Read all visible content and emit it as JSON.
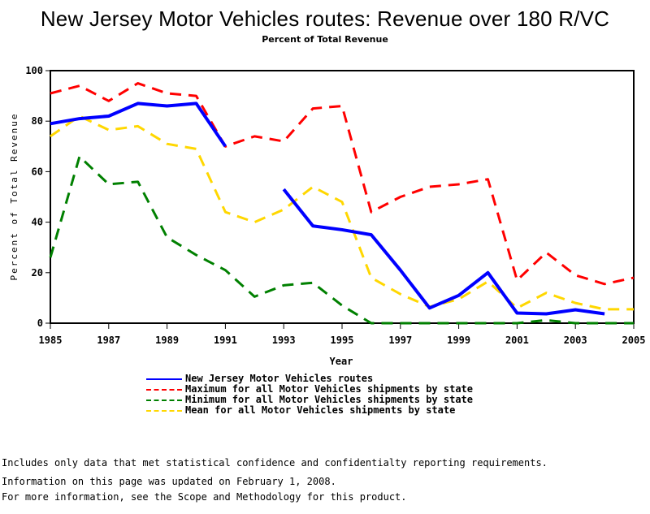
{
  "chart_data": {
    "type": "line",
    "title": "New Jersey Motor Vehicles routes: Revenue over 180 R/VC",
    "subtitle": "Percent of Total Revenue",
    "xlabel": "Year",
    "ylabel": "Percent of Total Revenue",
    "xlim": [
      1985,
      2005
    ],
    "ylim": [
      0,
      100
    ],
    "x_ticks": [
      "1985",
      "1987",
      "1989",
      "1991",
      "1993",
      "1995",
      "1997",
      "1999",
      "2001",
      "2003",
      "2005"
    ],
    "y_ticks": [
      "0",
      "20",
      "40",
      "60",
      "80",
      "100"
    ],
    "grid": false,
    "legend_position": "bottom",
    "x": [
      1985,
      1986,
      1987,
      1988,
      1989,
      1990,
      1991,
      1992,
      1993,
      1994,
      1995,
      1996,
      1997,
      1998,
      1999,
      2000,
      2001,
      2002,
      2003,
      2004,
      2005
    ],
    "series": [
      {
        "name": "New Jersey Motor Vehicles routes",
        "color": "#0000ff",
        "style": "solid",
        "values": [
          79,
          81,
          82,
          87,
          86,
          87,
          70,
          null,
          53,
          38.5,
          37,
          35,
          21,
          6,
          11,
          20,
          4,
          3.7,
          5.3,
          3.7,
          null
        ]
      },
      {
        "name": "Maximum for all Motor Vehicles shipments by state",
        "color": "#ff0000",
        "style": "dashed",
        "values": [
          91,
          94,
          88,
          95,
          91,
          90,
          70,
          74,
          72,
          85,
          86,
          44,
          50,
          54,
          55,
          57,
          17,
          28,
          19,
          15.5,
          18
        ]
      },
      {
        "name": "Minimum for all Motor Vehicles shipments by state",
        "color": "#008000",
        "style": "dashed",
        "values": [
          26,
          66,
          55,
          56,
          34,
          27,
          21,
          10.5,
          15,
          16,
          7,
          0,
          0,
          0,
          0,
          0,
          0,
          1.2,
          0,
          0,
          0
        ]
      },
      {
        "name": "Mean for all Motor Vehicles shipments by state",
        "color": "#ffd700",
        "style": "dashed",
        "values": [
          74,
          82,
          76.5,
          78,
          71,
          69,
          44,
          40,
          45,
          54,
          48,
          18,
          11.5,
          6.5,
          9.5,
          16.5,
          6,
          12,
          8,
          5.5,
          5.5
        ]
      }
    ]
  },
  "notes": [
    "Includes only data that met statistical confidence and confidentialty reporting requirements.",
    "For more information, see the Scope and Methodology for this product."
  ],
  "updated": "Information on this page was updated on February 1, 2008."
}
